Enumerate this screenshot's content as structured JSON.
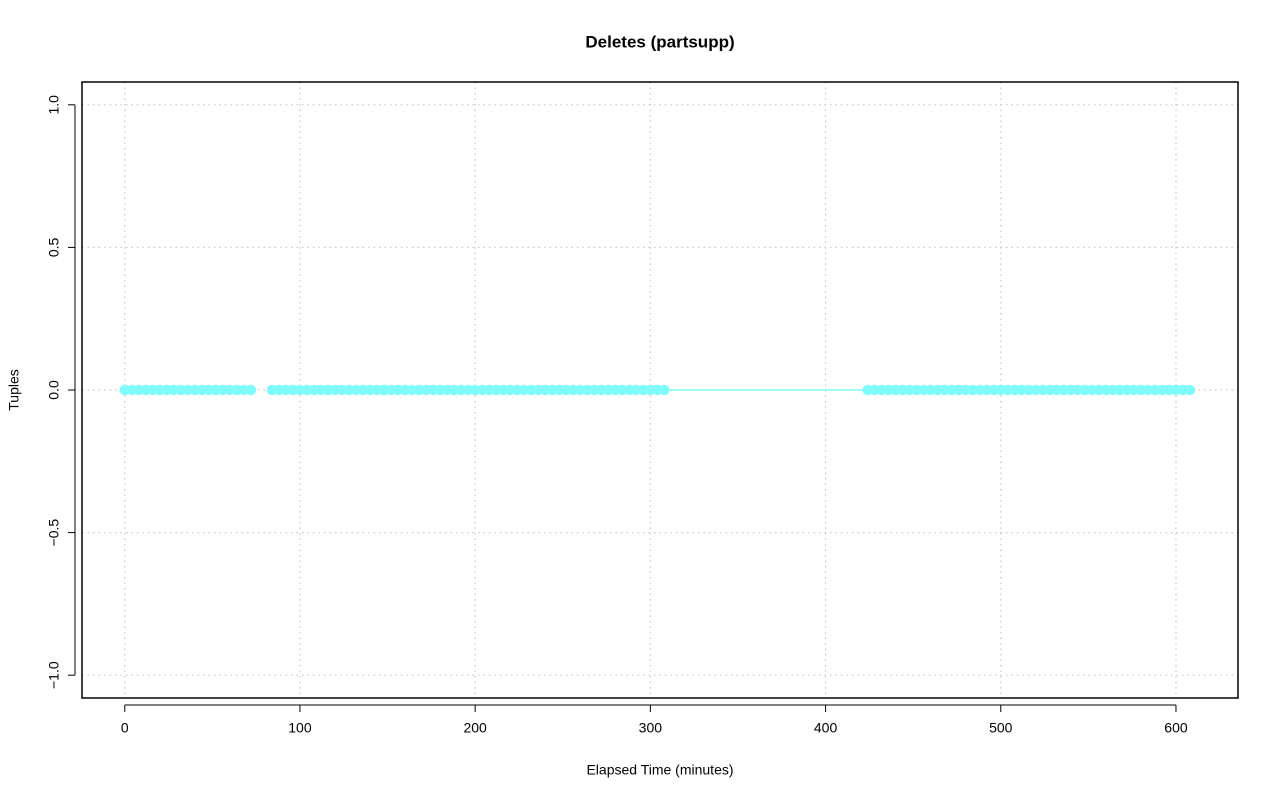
{
  "chart_data": {
    "type": "line",
    "title": "Deletes (partsupp)",
    "x_label": "Elapsed Time (minutes)",
    "y_label": "Tuples",
    "x": [
      0,
      4,
      8,
      12,
      16,
      20,
      24,
      28,
      32,
      36,
      40,
      44,
      48,
      52,
      56,
      60,
      64,
      68,
      72,
      78,
      84,
      88,
      92,
      96,
      100,
      104,
      108,
      112,
      116,
      120,
      124,
      128,
      132,
      136,
      140,
      144,
      148,
      152,
      156,
      160,
      164,
      168,
      172,
      176,
      180,
      184,
      188,
      192,
      196,
      200,
      204,
      208,
      212,
      216,
      220,
      224,
      228,
      232,
      236,
      240,
      244,
      248,
      252,
      256,
      260,
      264,
      268,
      272,
      276,
      280,
      284,
      288,
      292,
      296,
      300,
      304,
      308,
      424,
      428,
      432,
      436,
      440,
      444,
      448,
      452,
      456,
      460,
      464,
      468,
      472,
      476,
      480,
      484,
      488,
      492,
      496,
      500,
      504,
      508,
      512,
      516,
      520,
      524,
      528,
      532,
      536,
      540,
      544,
      548,
      552,
      556,
      560,
      564,
      568,
      572,
      576,
      580,
      584,
      588,
      592,
      596,
      600,
      604,
      608
    ],
    "series": [
      {
        "name": "partsupp",
        "color": "#7ffcfc",
        "values": [
          0,
          0,
          0,
          0,
          0,
          0,
          0,
          0,
          0,
          0,
          0,
          0,
          0,
          0,
          0,
          0,
          0,
          0,
          0,
          null,
          0,
          0,
          0,
          0,
          0,
          0,
          0,
          0,
          0,
          0,
          0,
          0,
          0,
          0,
          0,
          0,
          0,
          0,
          0,
          0,
          0,
          0,
          0,
          0,
          0,
          0,
          0,
          0,
          0,
          0,
          0,
          0,
          0,
          0,
          0,
          0,
          0,
          0,
          0,
          0,
          0,
          0,
          0,
          0,
          0,
          0,
          0,
          0,
          0,
          0,
          0,
          0,
          0,
          0,
          0,
          0,
          0,
          0,
          0,
          0,
          0,
          0,
          0,
          0,
          0,
          0,
          0,
          0,
          0,
          0,
          0,
          0,
          0,
          0,
          0,
          0,
          0,
          0,
          0,
          0,
          0,
          0,
          0,
          0,
          0,
          0,
          0,
          0,
          0,
          0,
          0,
          0,
          0,
          0,
          0,
          0,
          0,
          0,
          0,
          0,
          0,
          0,
          0,
          0
        ]
      }
    ],
    "xlim": [
      -24.4,
      635.4
    ],
    "ylim": [
      -1.08,
      1.08
    ],
    "xticks": [
      0,
      100,
      200,
      300,
      400,
      500,
      600
    ],
    "yticks": [
      {
        "value": -1,
        "label": "−1.0"
      },
      {
        "value": -0.5,
        "label": "−0.5"
      },
      {
        "value": 0,
        "label": "0.0"
      },
      0.5,
      {
        "value": 1,
        "label": "1.0"
      }
    ],
    "grid": true
  }
}
